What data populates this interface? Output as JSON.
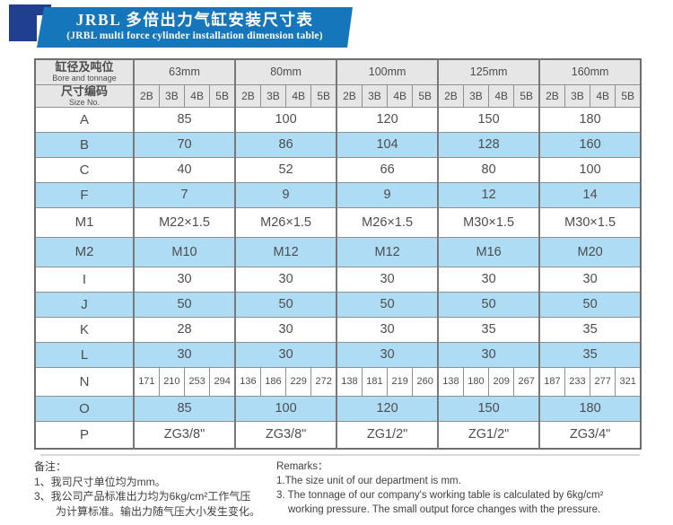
{
  "colors": {
    "banner-blue": "#1576bb",
    "navy": "#20408f",
    "header-gray": "#e6e6e6",
    "row-blue": "#aedcf5"
  },
  "title": {
    "zh": "JRBL 多倍出力气缸安装尺寸表",
    "en": "(JRBL multi force cylinder installation dimension table)"
  },
  "table": {
    "corner": {
      "zh": "缸径及吨位",
      "en": "Bore and tonnage"
    },
    "size_no": {
      "zh": "尺寸编码",
      "en": "Size No."
    },
    "bores": [
      "63mm",
      "80mm",
      "100mm",
      "125mm",
      "160mm"
    ],
    "sub_cols": [
      "2B",
      "3B",
      "4B",
      "5B"
    ],
    "rows": [
      {
        "label": "A",
        "type": "merged",
        "values": [
          "85",
          "100",
          "120",
          "150",
          "180"
        ]
      },
      {
        "label": "B",
        "type": "merged",
        "values": [
          "70",
          "86",
          "104",
          "128",
          "160"
        ]
      },
      {
        "label": "C",
        "type": "merged",
        "values": [
          "40",
          "52",
          "66",
          "80",
          "100"
        ]
      },
      {
        "label": "F",
        "type": "merged",
        "values": [
          "7",
          "9",
          "9",
          "12",
          "14"
        ]
      },
      {
        "label": "M1",
        "type": "merged",
        "values": [
          "M22×1.5",
          "M26×1.5",
          "M26×1.5",
          "M30×1.5",
          "M30×1.5"
        ]
      },
      {
        "label": "M2",
        "type": "merged",
        "values": [
          "M10",
          "M12",
          "M12",
          "M16",
          "M20"
        ]
      },
      {
        "label": "I",
        "type": "merged",
        "values": [
          "30",
          "30",
          "30",
          "30",
          "30"
        ]
      },
      {
        "label": "J",
        "type": "merged",
        "values": [
          "50",
          "50",
          "50",
          "50",
          "50"
        ]
      },
      {
        "label": "K",
        "type": "merged",
        "values": [
          "28",
          "30",
          "30",
          "35",
          "35"
        ]
      },
      {
        "label": "L",
        "type": "merged",
        "values": [
          "30",
          "30",
          "30",
          "30",
          "35"
        ]
      },
      {
        "label": "N",
        "type": "per_size",
        "values": [
          [
            "171",
            "210",
            "253",
            "294"
          ],
          [
            "136",
            "186",
            "229",
            "272"
          ],
          [
            "138",
            "181",
            "219",
            "260"
          ],
          [
            "138",
            "180",
            "209",
            "267"
          ],
          [
            "187",
            "233",
            "277",
            "321"
          ]
        ]
      },
      {
        "label": "O",
        "type": "merged",
        "values": [
          "85",
          "100",
          "120",
          "150",
          "180"
        ]
      },
      {
        "label": "P",
        "type": "merged",
        "values": [
          "ZG3/8\"",
          "ZG3/8\"",
          "ZG1/2\"",
          "ZG1/2\"",
          "ZG3/4\""
        ]
      }
    ]
  },
  "notes_left": {
    "heading": "备注：",
    "lines": [
      "1、我司尺寸单位均为mm。",
      "3、我公司产品标准出力均为6kg/cm²工作气压",
      "为计算标准。输出力随气压大小发生变化。"
    ]
  },
  "notes_right": {
    "heading": "Remarks：",
    "lines": [
      "1.The size unit of our department is mm.",
      "3. The tonnage of our company's working table is calculated by 6kg/cm²",
      "working pressure. The small output force changes with the pressure."
    ]
  }
}
